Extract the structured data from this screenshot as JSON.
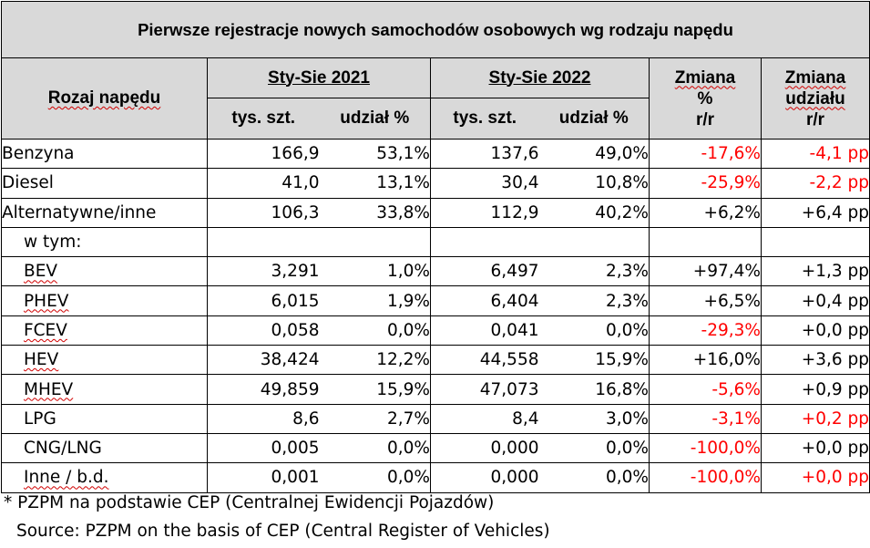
{
  "title": "Pierwsze rejestracje nowych samochodów osobowych wg rodzaju napędu",
  "header": {
    "drive_type": "Rozaj napędu",
    "period_2021": "Sty-Sie 2021",
    "period_2022": "Sty-Sie 2022",
    "units": "tys. szt.",
    "share": "udział %",
    "change_pct_l1": "Zmiana",
    "change_pct_l2": "%",
    "change_pct_l3": "r/r",
    "change_share_l1": "Zmiana",
    "change_share_l2": "udziału",
    "change_share_l3": "r/r"
  },
  "rows": [
    {
      "name": "Benzyna",
      "u21": "166,9",
      "s21": "53,1%",
      "u22": "137,6",
      "s22": "49,0%",
      "chg": "-17,6%",
      "chg_neg": true,
      "dsh": "-4,1 pp",
      "dsh_neg": true
    },
    {
      "name": "Diesel",
      "u21": "41,0",
      "s21": "13,1%",
      "u22": "30,4",
      "s22": "10,8%",
      "chg": "-25,9%",
      "chg_neg": true,
      "dsh": "-2,2 pp",
      "dsh_neg": true
    },
    {
      "name": "Alternatywne/inne",
      "u21": "106,3",
      "s21": "33,8%",
      "u22": "112,9",
      "s22": "40,2%",
      "chg": "+6,2%",
      "chg_neg": false,
      "dsh": "+6,4 pp",
      "dsh_neg": false
    },
    {
      "name": "w tym:",
      "u21": "",
      "s21": "",
      "u22": "",
      "s22": "",
      "chg": "",
      "chg_neg": false,
      "dsh": "",
      "dsh_neg": false
    },
    {
      "name": "BEV",
      "u21": "3,291",
      "s21": "1,0%",
      "u22": "6,497",
      "s22": "2,3%",
      "chg": "+97,4%",
      "chg_neg": false,
      "dsh": "+1,3 pp",
      "dsh_neg": false
    },
    {
      "name": "PHEV",
      "u21": "6,015",
      "s21": "1,9%",
      "u22": "6,404",
      "s22": "2,3%",
      "chg": "+6,5%",
      "chg_neg": false,
      "dsh": "+0,4 pp",
      "dsh_neg": false
    },
    {
      "name": "FCEV",
      "u21": "0,058",
      "s21": "0,0%",
      "u22": "0,041",
      "s22": "0,0%",
      "chg": "-29,3%",
      "chg_neg": true,
      "dsh": "+0,0 pp",
      "dsh_neg": false
    },
    {
      "name": "HEV",
      "u21": "38,424",
      "s21": "12,2%",
      "u22": "44,558",
      "s22": "15,9%",
      "chg": "+16,0%",
      "chg_neg": false,
      "dsh": "+3,6 pp",
      "dsh_neg": false
    },
    {
      "name": "MHEV",
      "u21": "49,859",
      "s21": "15,9%",
      "u22": "47,073",
      "s22": "16,8%",
      "chg": "-5,6%",
      "chg_neg": true,
      "dsh": "+0,9 pp",
      "dsh_neg": false
    },
    {
      "name": "LPG",
      "u21": "8,6",
      "s21": "2,7%",
      "u22": "8,4",
      "s22": "3,0%",
      "chg": "-3,1%",
      "chg_neg": true,
      "dsh": "+0,2 pp",
      "dsh_neg": true
    },
    {
      "name": "CNG/LNG",
      "u21": "0,005",
      "s21": "0,0%",
      "u22": "0,000",
      "s22": "0,0%",
      "chg": "-100,0%",
      "chg_neg": true,
      "dsh": "+0,0 pp",
      "dsh_neg": false
    },
    {
      "name": "Inne / b.d.",
      "u21": "0,001",
      "s21": "0,0%",
      "u22": "0,000",
      "s22": "0,0%",
      "chg": "-100,0%",
      "chg_neg": true,
      "dsh": "+0,0 pp",
      "dsh_neg": true
    }
  ],
  "footnote": "* PZPM na podstawie CEP (Centralnej Ewidencji Pojazdów)",
  "source": "Source: PZPM on the basis of CEP (Central Register of Vehicles)",
  "colors": {
    "header_bg": "#d9d9d9",
    "negative": "#ff0000",
    "text": "#000000"
  }
}
